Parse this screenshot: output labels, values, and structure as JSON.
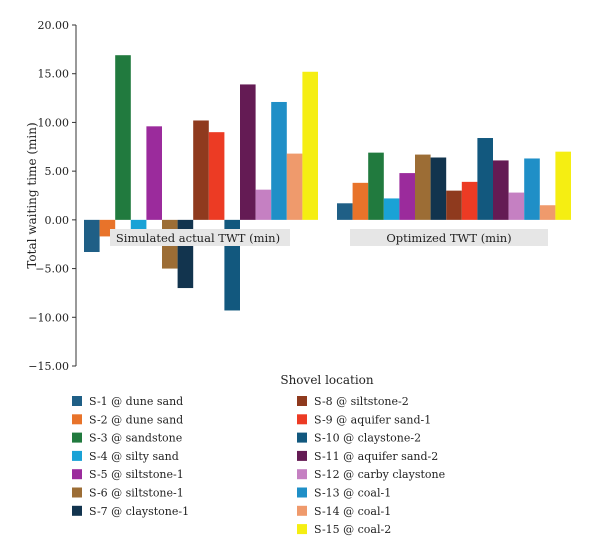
{
  "chart_data": {
    "type": "bar",
    "ylabel": "Total waiting time (min)",
    "xlabel": "Shovel location",
    "ylim": [
      -15,
      20
    ],
    "yticks": [
      "−15.00",
      "−10.00",
      "−5.00",
      "0.00",
      "5.00",
      "10.00",
      "15.00",
      "20.00"
    ],
    "ytick_values": [
      -15,
      -10,
      -5,
      0,
      5,
      10,
      15,
      20
    ],
    "grid": false,
    "legend_position": "bottom",
    "groups": [
      {
        "label": "Simulated actual TWT (min)",
        "values": [
          -3.3,
          -1.7,
          16.9,
          -1.0,
          9.6,
          -5.0,
          -7.0,
          10.2,
          9.0,
          -9.3,
          13.9,
          3.1,
          12.1,
          6.8,
          15.2
        ]
      },
      {
        "label": "Optimized TWT (min)",
        "values": [
          1.7,
          3.8,
          6.9,
          2.2,
          4.8,
          6.7,
          6.4,
          3.0,
          3.9,
          8.4,
          6.1,
          2.8,
          6.3,
          1.5,
          7.0
        ]
      }
    ],
    "series": [
      {
        "name": "S-1 @ dune sand",
        "color": "#1f5f86"
      },
      {
        "name": "S-2 @ dune sand",
        "color": "#e8732a"
      },
      {
        "name": "S-3 @ sandstone",
        "color": "#217a3e"
      },
      {
        "name": "S-4 @ silty sand",
        "color": "#1aa2d6"
      },
      {
        "name": "S-5 @ siltstone-1",
        "color": "#9b2b9c"
      },
      {
        "name": "S-6 @ siltstone-1",
        "color": "#9c6d35"
      },
      {
        "name": "S-7 @ claystone-1",
        "color": "#12344e"
      },
      {
        "name": "S-8 @ siltstone-2",
        "color": "#8f3a1e"
      },
      {
        "name": "S-9 @ aquifer sand-1",
        "color": "#ec3b24"
      },
      {
        "name": "S-10 @ claystone-2",
        "color": "#12587e"
      },
      {
        "name": "S-11 @ aquifer sand-2",
        "color": "#641b54"
      },
      {
        "name": "S-12 @ carby claystone",
        "color": "#c580c2"
      },
      {
        "name": "S-13 @ coal-1",
        "color": "#1f8fc7"
      },
      {
        "name": "S-14 @ coal-1",
        "color": "#ef9a6c"
      },
      {
        "name": "S-15 @ coal-2",
        "color": "#f5ee12"
      }
    ]
  }
}
